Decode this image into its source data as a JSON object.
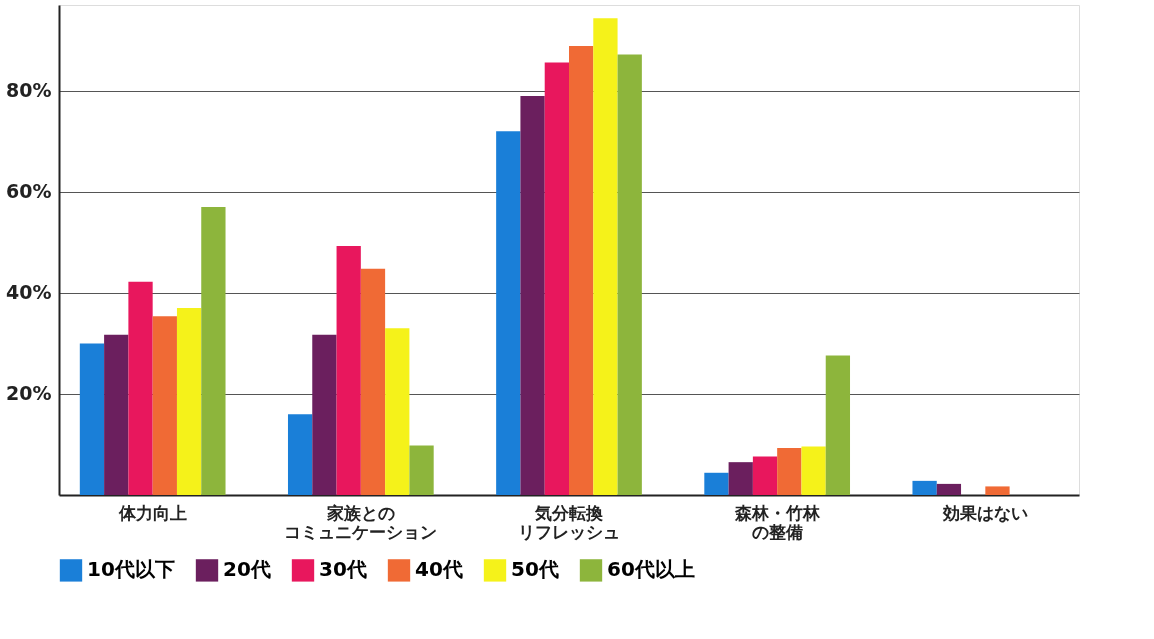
{
  "chart_data": {
    "type": "bar",
    "categories": [
      "体力向上",
      "家族とのコミュニケーション",
      "気分転換リフレッシュ",
      "森林・竹林の整備",
      "効果はない"
    ],
    "series": [
      {
        "name": "10代以下",
        "color": "#1a7fd8",
        "values": [
          30,
          16,
          72,
          4.4,
          2.8
        ]
      },
      {
        "name": "20代",
        "color": "#6b1f5e",
        "values": [
          31.7,
          31.7,
          79,
          6.5,
          2.2
        ]
      },
      {
        "name": "30代",
        "color": "#e8175d",
        "values": [
          42.2,
          49.3,
          85.6,
          7.6,
          null
        ]
      },
      {
        "name": "40代",
        "color": "#f06a35",
        "values": [
          35.4,
          44.8,
          88.9,
          9.3,
          1.7
        ]
      },
      {
        "name": "50代",
        "color": "#f5f21a",
        "values": [
          37,
          33,
          94.4,
          9.6,
          null
        ]
      },
      {
        "name": "60代以上",
        "color": "#8db53c",
        "values": [
          57,
          9.8,
          87.2,
          27.6,
          null
        ]
      }
    ],
    "ylim": [
      0,
      97
    ],
    "yticks": [
      {
        "value": 20,
        "label": "20%"
      },
      {
        "value": 40,
        "label": "40%"
      },
      {
        "value": 60,
        "label": "60%"
      },
      {
        "value": 80,
        "label": "80%"
      }
    ],
    "grid": "y",
    "legend": "bottom"
  }
}
